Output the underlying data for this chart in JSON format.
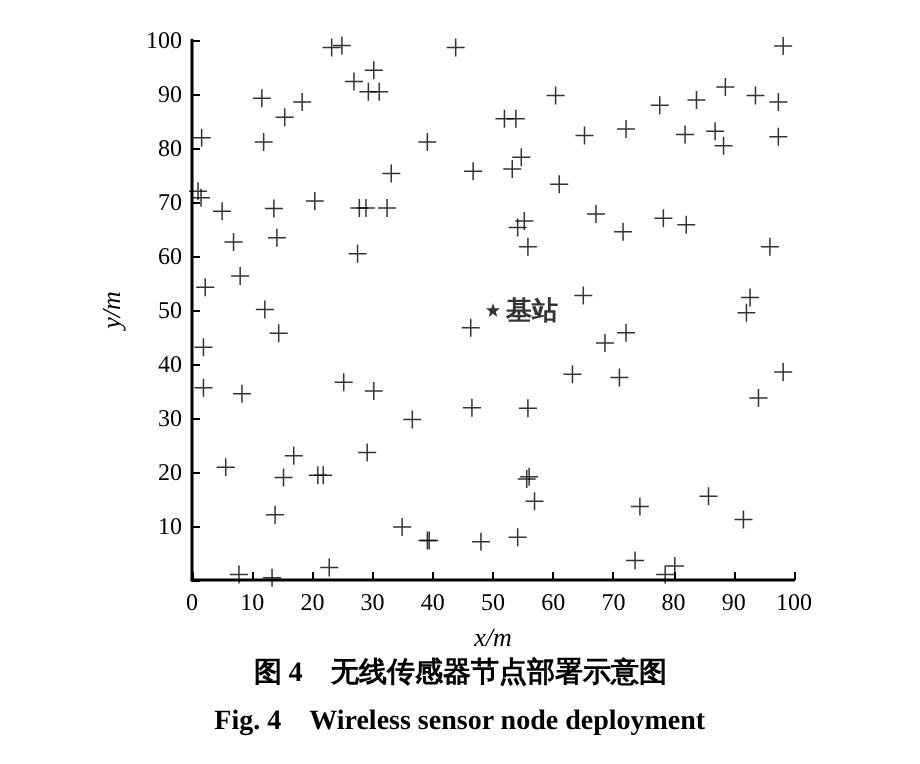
{
  "chart_data": {
    "type": "scatter",
    "xlabel": "x/m",
    "ylabel": "y/m",
    "xlim": [
      0,
      100
    ],
    "ylim": [
      0,
      100
    ],
    "xticks": [
      0,
      10,
      20,
      30,
      40,
      50,
      60,
      70,
      80,
      90,
      100
    ],
    "yticks": [
      {
        "value": 0,
        "label": null
      },
      10,
      20,
      30,
      40,
      50,
      60,
      70,
      80,
      90,
      100
    ],
    "grid": false,
    "legend": false,
    "annotations": [
      "图 4　无线传感器节点部署示意图",
      "Fig. 4　Wireless sensor node deployment"
    ],
    "series": [
      {
        "color": "#000000",
        "marker": "cross",
        "x": [
          1.6,
          1,
          1.5,
          5,
          6.9,
          8,
          2.2,
          12.1,
          11.6,
          11.9,
          15.4,
          18.3,
          13.6,
          14.1,
          20.4,
          23.2,
          24.9,
          26.9,
          30.2,
          29.3,
          31.1,
          27.5,
          27.8,
          28.9,
          32.4,
          33.1,
          39.1,
          43.8,
          46.7,
          51.9,
          53.8,
          54.7,
          53.2,
          60.4,
          65.2,
          72.1,
          77.7,
          83.8,
          88.6,
          93.6,
          97.4,
          98.2,
          81.9,
          86.9,
          88.3,
          97.4,
          61,
          67.1,
          71.6,
          78.3,
          82.1,
          55.2,
          54.1,
          55.8,
          96,
          65,
          92.7,
          92.1,
          46.3,
          14.4,
          1.9,
          1.9,
          8.3,
          25.2,
          30.2,
          46.5,
          36.6,
          5.6,
          16.9,
          29.1,
          15.2,
          20.9,
          21.8,
          13.8,
          34.9,
          39.1,
          39.4,
          48,
          7.8,
          13.3,
          22.8,
          68.6,
          72.1,
          63.2,
          71,
          98.2,
          94.1,
          55.8,
          56,
          55.6,
          56.9,
          74.4,
          85.8,
          91.6,
          54.1,
          73.6,
          80.2,
          78.6
        ],
        "values": [
          81.9,
          72,
          70.8,
          68.3,
          62.6,
          56.3,
          54.2,
          50.1,
          89.2,
          81.1,
          85.7,
          88.5,
          68.8,
          63.4,
          70.2,
          98.6,
          99,
          92.3,
          94.4,
          90.4,
          90.4,
          60.4,
          68.9,
          68.9,
          68.9,
          75.3,
          81.1,
          98.6,
          75.7,
          85.4,
          85.4,
          78.3,
          76.1,
          89.7,
          82.3,
          83.5,
          87.9,
          88.9,
          91.3,
          89.7,
          88.5,
          98.9,
          82.5,
          83.1,
          80.4,
          82.1,
          73.3,
          67.8,
          64.5,
          67,
          65.8,
          66.5,
          65.3,
          61.7,
          61.7,
          52.7,
          52.3,
          49.5,
          46.7,
          45.7,
          43.1,
          35.6,
          34.5,
          36.6,
          35,
          31.9,
          29.7,
          20.9,
          23,
          23.6,
          19,
          19.4,
          19.4,
          12.1,
          9.8,
          7.3,
          7.3,
          7.1,
          1,
          0.4,
          2.3,
          43.9,
          45.8,
          38.1,
          37.5,
          38.5,
          33.7,
          31.8,
          19.1,
          18.7,
          14.6,
          13.6,
          15.5,
          11.2,
          7.9,
          3.6,
          2.6,
          1
        ]
      },
      {
        "name": "基站",
        "color": "#000000",
        "marker": "star",
        "x": [
          50
        ],
        "values": [
          50
        ]
      }
    ]
  }
}
